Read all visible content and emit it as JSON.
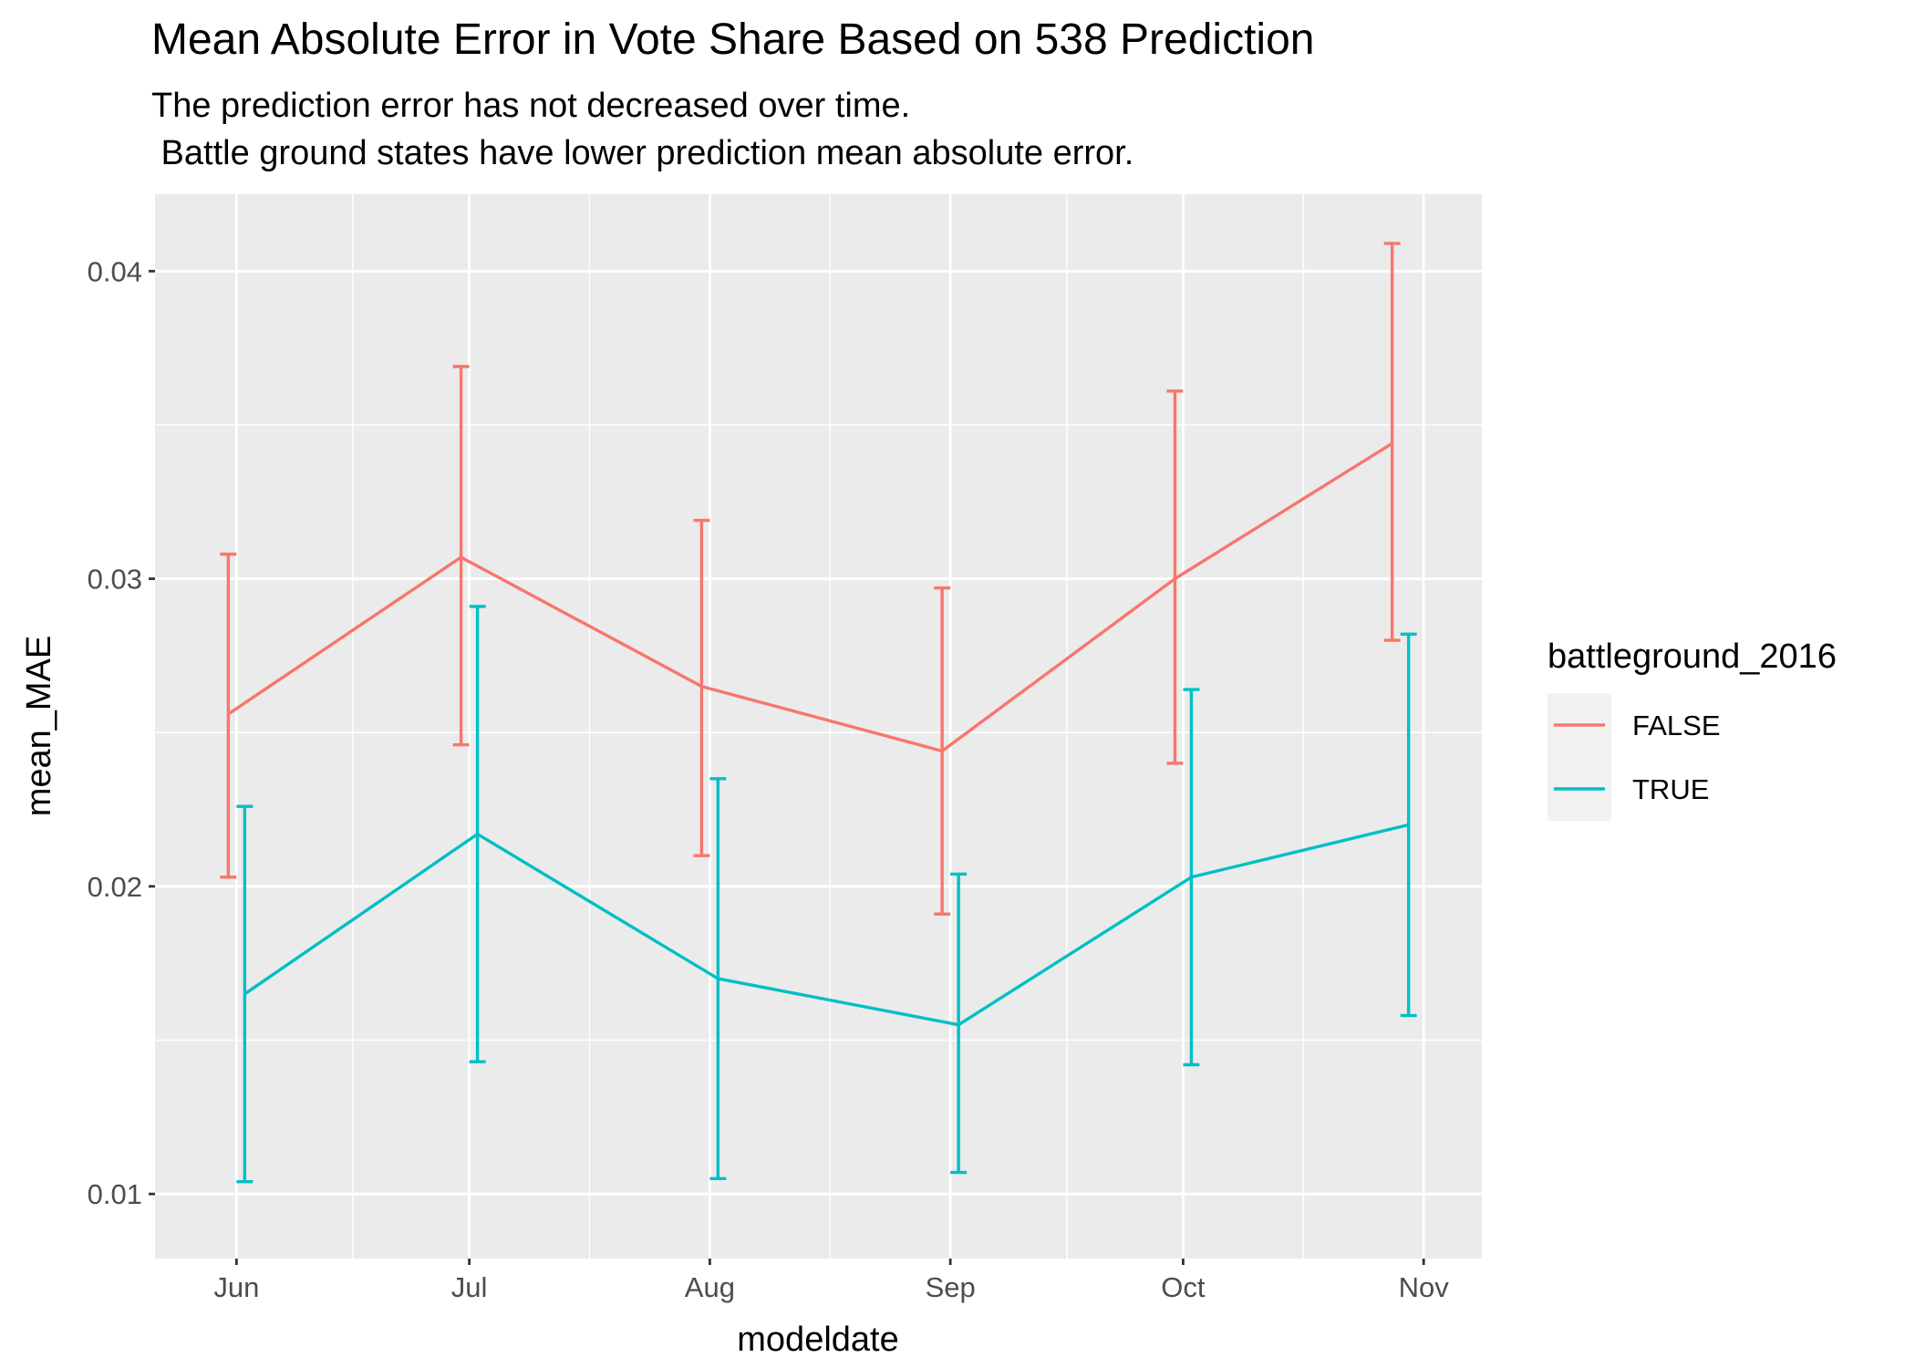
{
  "chart_data": {
    "type": "line",
    "title": "Mean Absolute Error in Vote Share Based on 538 Prediction",
    "subtitle_lines": [
      "The prediction error has not decreased over time.",
      " Battle ground states have lower prediction mean absolute error."
    ],
    "xlabel": "modeldate",
    "ylabel": "mean_MAE",
    "x_ticks": [
      "Jun",
      "Jul",
      "Aug",
      "Sep",
      "Oct",
      "Nov"
    ],
    "y_ticks": [
      "0.01",
      "0.02",
      "0.03",
      "0.04"
    ],
    "ylim": [
      0.0079,
      0.0425
    ],
    "grid": true,
    "legend": {
      "title": "battleground_2016",
      "placement": "right"
    },
    "series": [
      {
        "name": "FALSE",
        "color": "#F8766D",
        "points": [
          {
            "date": "2016-06-01",
            "mean": 0.0256,
            "lower": 0.0203,
            "upper": 0.0308
          },
          {
            "date": "2016-07-01",
            "mean": 0.0307,
            "lower": 0.0246,
            "upper": 0.0369
          },
          {
            "date": "2016-08-01",
            "mean": 0.0265,
            "lower": 0.021,
            "upper": 0.0319
          },
          {
            "date": "2016-09-01",
            "mean": 0.0244,
            "lower": 0.0191,
            "upper": 0.0297
          },
          {
            "date": "2016-10-01",
            "mean": 0.03,
            "lower": 0.024,
            "upper": 0.0361
          },
          {
            "date": "2016-10-29",
            "mean": 0.0344,
            "lower": 0.028,
            "upper": 0.0409
          }
        ]
      },
      {
        "name": "TRUE",
        "color": "#00BFC4",
        "points": [
          {
            "date": "2016-06-01",
            "mean": 0.0165,
            "lower": 0.0104,
            "upper": 0.0226
          },
          {
            "date": "2016-07-01",
            "mean": 0.0217,
            "lower": 0.0143,
            "upper": 0.0291
          },
          {
            "date": "2016-08-01",
            "mean": 0.017,
            "lower": 0.0105,
            "upper": 0.0235
          },
          {
            "date": "2016-09-01",
            "mean": 0.0155,
            "lower": 0.0107,
            "upper": 0.0204
          },
          {
            "date": "2016-10-01",
            "mean": 0.0203,
            "lower": 0.0142,
            "upper": 0.0264
          },
          {
            "date": "2016-10-29",
            "mean": 0.022,
            "lower": 0.0158,
            "upper": 0.0282
          }
        ]
      }
    ]
  }
}
